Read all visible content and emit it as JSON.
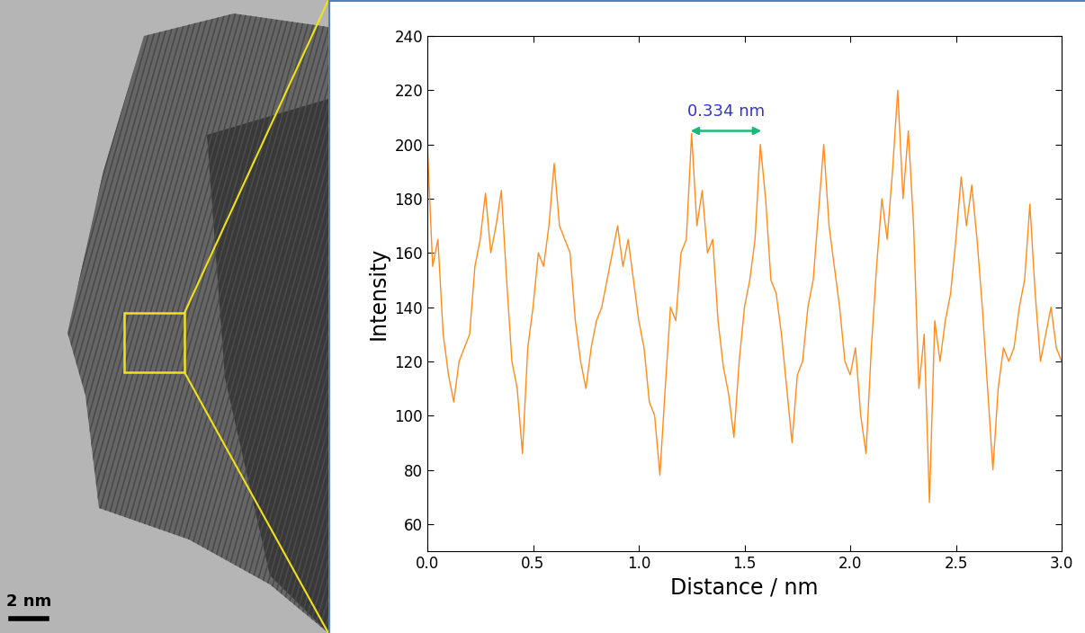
{
  "chart_data": {
    "type": "line",
    "x_label": "Distance / nm",
    "y_label": "Intensity",
    "color": "#ff8c1a",
    "x": [
      0.0,
      0.025,
      0.05,
      0.075,
      0.1,
      0.125,
      0.15,
      0.175,
      0.2,
      0.225,
      0.25,
      0.275,
      0.3,
      0.325,
      0.35,
      0.375,
      0.4,
      0.425,
      0.45,
      0.475,
      0.5,
      0.525,
      0.55,
      0.575,
      0.6,
      0.625,
      0.65,
      0.675,
      0.7,
      0.725,
      0.75,
      0.775,
      0.8,
      0.825,
      0.85,
      0.875,
      0.9,
      0.925,
      0.95,
      0.975,
      1.0,
      1.025,
      1.05,
      1.075,
      1.1,
      1.125,
      1.15,
      1.175,
      1.2,
      1.225,
      1.25,
      1.275,
      1.3,
      1.325,
      1.35,
      1.375,
      1.4,
      1.425,
      1.45,
      1.475,
      1.5,
      1.525,
      1.55,
      1.575,
      1.6,
      1.625,
      1.65,
      1.675,
      1.7,
      1.725,
      1.75,
      1.775,
      1.8,
      1.825,
      1.85,
      1.875,
      1.9,
      1.925,
      1.95,
      1.975,
      2.0,
      2.025,
      2.05,
      2.075,
      2.1,
      2.125,
      2.15,
      2.175,
      2.2,
      2.225,
      2.25,
      2.275,
      2.3,
      2.325,
      2.35,
      2.375,
      2.4,
      2.425,
      2.45,
      2.475,
      2.5,
      2.525,
      2.55,
      2.575,
      2.6,
      2.625,
      2.65,
      2.675,
      2.7,
      2.725,
      2.75,
      2.775,
      2.8,
      2.825,
      2.85,
      2.875,
      2.9,
      2.925,
      2.95,
      2.975,
      3.0
    ],
    "values": [
      200,
      155,
      165,
      130,
      115,
      105,
      120,
      125,
      130,
      155,
      165,
      182,
      160,
      170,
      183,
      150,
      120,
      110,
      86,
      125,
      140,
      160,
      155,
      170,
      193,
      170,
      165,
      160,
      135,
      120,
      110,
      125,
      135,
      140,
      150,
      160,
      170,
      155,
      165,
      150,
      135,
      125,
      105,
      100,
      78,
      110,
      140,
      135,
      160,
      165,
      204,
      170,
      183,
      160,
      165,
      135,
      118,
      108,
      92,
      120,
      140,
      150,
      165,
      200,
      180,
      150,
      145,
      130,
      110,
      90,
      115,
      120,
      140,
      150,
      175,
      200,
      170,
      155,
      140,
      120,
      115,
      125,
      100,
      86,
      125,
      155,
      180,
      165,
      190,
      220,
      180,
      205,
      170,
      110,
      130,
      68,
      135,
      120,
      135,
      145,
      165,
      188,
      170,
      185,
      165,
      140,
      110,
      80,
      110,
      125,
      120,
      125,
      140,
      150,
      178,
      145,
      120,
      130,
      140,
      125,
      120
    ],
    "xlim": [
      0,
      3.0
    ],
    "ylim": [
      50,
      240
    ],
    "xticks": [
      {
        "value": 0,
        "label": "0.0"
      },
      {
        "value": 0.5,
        "label": "0.5"
      },
      {
        "value": 1.0,
        "label": "1.0"
      },
      {
        "value": 1.5,
        "label": "1.5"
      },
      {
        "value": 2.0,
        "label": "2.0"
      },
      {
        "value": 2.5,
        "label": "2.5"
      },
      {
        "value": 3.0,
        "label": "3.0"
      }
    ],
    "yticks": [
      60,
      80,
      100,
      120,
      140,
      160,
      180,
      200,
      220,
      240
    ],
    "grid": false,
    "measurement": {
      "text": "0.334 nm",
      "x_start": 1.245,
      "x_end": 1.58,
      "y": 205,
      "color": "#1ab87a",
      "text_color": "#3333cc"
    }
  },
  "image_panel": {
    "scale_bar_label": "2 nm"
  }
}
